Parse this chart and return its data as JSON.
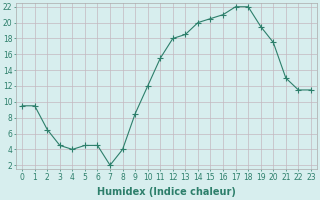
{
  "x": [
    0,
    1,
    2,
    3,
    4,
    5,
    6,
    7,
    8,
    9,
    10,
    11,
    12,
    13,
    14,
    15,
    16,
    17,
    18,
    19,
    20,
    21,
    22,
    23
  ],
  "y": [
    9.5,
    9.5,
    6.5,
    4.5,
    4,
    4.5,
    4.5,
    2,
    4,
    8.5,
    12,
    15.5,
    18,
    18.5,
    20,
    20.5,
    21,
    22,
    22,
    19.5,
    17.5,
    13,
    11.5,
    11.5
  ],
  "line_color": "#2d7f6b",
  "marker_color": "#2d7f6b",
  "bg_color": "#d7eeee",
  "grid_color": "#c8d8d8",
  "xlabel": "Humidex (Indice chaleur)",
  "ylim": [
    1.5,
    22.5
  ],
  "xlim": [
    -0.5,
    23.5
  ],
  "yticks": [
    2,
    4,
    6,
    8,
    10,
    12,
    14,
    16,
    18,
    20,
    22
  ],
  "xticks": [
    0,
    1,
    2,
    3,
    4,
    5,
    6,
    7,
    8,
    9,
    10,
    11,
    12,
    13,
    14,
    15,
    16,
    17,
    18,
    19,
    20,
    21,
    22,
    23
  ],
  "font_size": 5.5,
  "label_font_size": 7,
  "line_width": 0.8,
  "marker_size": 2.0
}
